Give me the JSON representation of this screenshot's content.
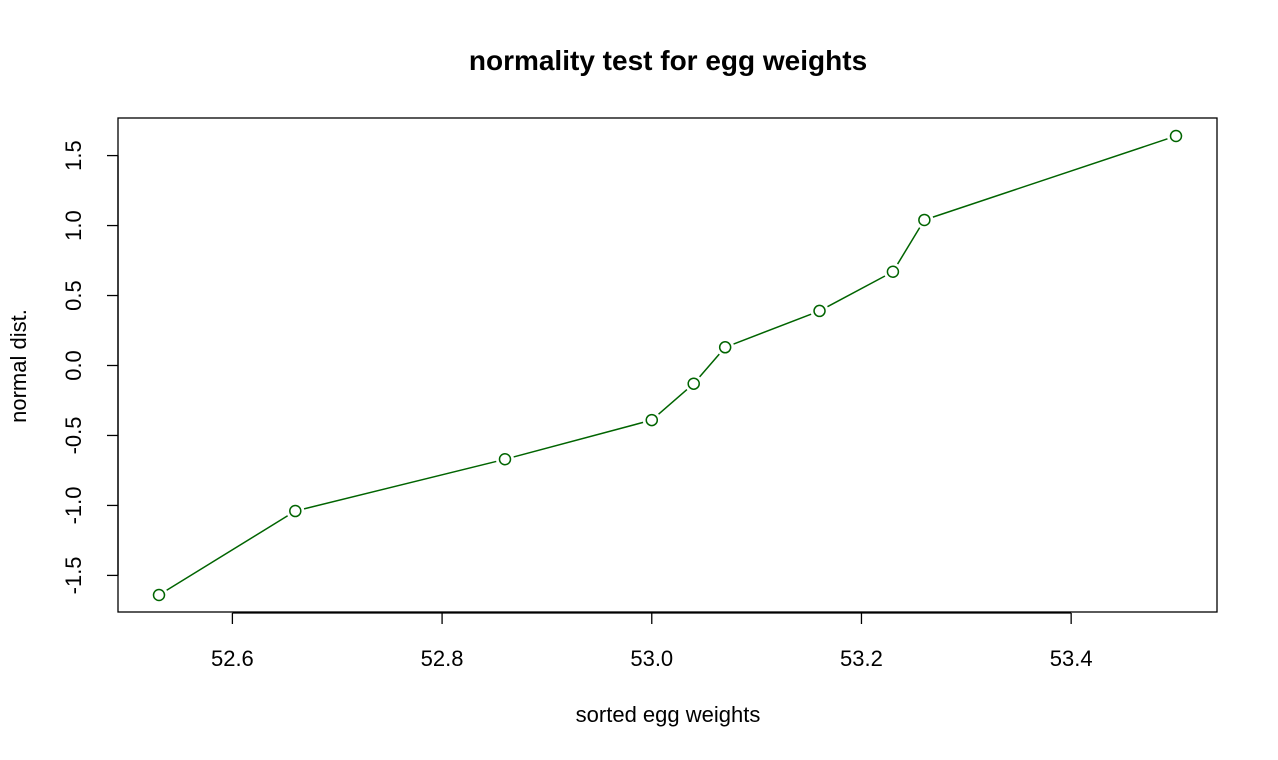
{
  "chart_data": {
    "type": "line",
    "title": "normality test for egg weights",
    "xlabel": "sorted egg weights",
    "ylabel": "normal dist.",
    "xlim": [
      52.5,
      53.5
    ],
    "ylim": [
      -1.65,
      1.65
    ],
    "x_ticks": [
      "52.6",
      "52.8",
      "53.0",
      "53.2",
      "53.4"
    ],
    "y_ticks": [
      "-1.5",
      "-1.0",
      "-0.5",
      "0.0",
      "0.5",
      "1.0",
      "1.5"
    ],
    "grid": false,
    "line_color": "#006400",
    "series": [
      {
        "x": [
          52.53,
          52.66,
          52.86,
          53.0,
          53.04,
          53.07,
          53.16,
          53.23,
          53.26,
          53.5
        ],
        "y": [
          -1.64,
          -1.04,
          -0.67,
          -0.39,
          -0.13,
          0.13,
          0.39,
          0.67,
          1.04,
          1.64
        ]
      }
    ]
  }
}
